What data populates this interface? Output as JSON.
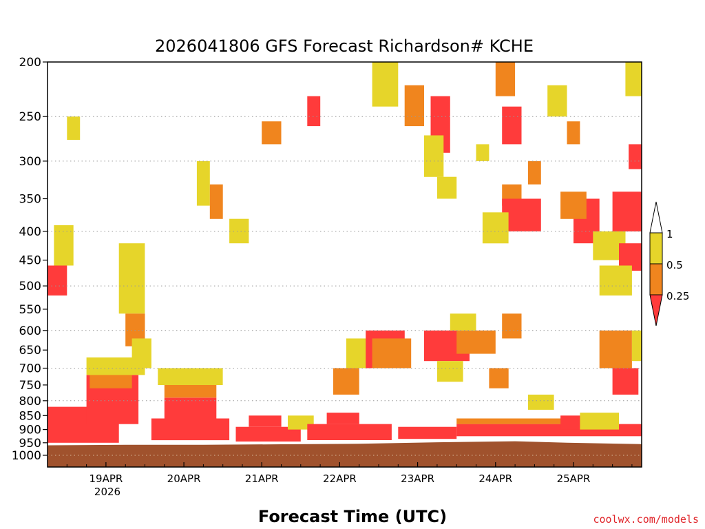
{
  "chart_data": {
    "type": "heatmap",
    "title": "2026041806 GFS Forecast Richardson# KCHE",
    "xlabel": "Forecast Time (UTC)",
    "credit": "coolwx.com/models",
    "y_axis": {
      "scale": "pressure (log)",
      "range": [
        1000,
        200
      ],
      "ticks": [
        "200",
        "250",
        "300",
        "350",
        "400",
        "450",
        "500",
        "550",
        "600",
        "650",
        "700",
        "750",
        "800",
        "850",
        "900",
        "950",
        "1000"
      ],
      "gridlines_dotted": [
        1000,
        800,
        700,
        600,
        500,
        400,
        300,
        250
      ]
    },
    "x_axis": {
      "range_hours": [
        0,
        183
      ],
      "start": "2026-04-18 06Z",
      "ticks": [
        {
          "label": "19APR",
          "hour": 18
        },
        {
          "label": "20APR",
          "hour": 42
        },
        {
          "label": "21APR",
          "hour": 66
        },
        {
          "label": "22APR",
          "hour": 90
        },
        {
          "label": "23APR",
          "hour": 114
        },
        {
          "label": "24APR",
          "hour": 138
        },
        {
          "label": "25APR",
          "hour": 162
        }
      ],
      "year_label": "2026"
    },
    "legend": {
      "placement": "right",
      "colors": {
        "above": "#ffffff",
        "low": "#ff3b3b",
        "mid": "#f0851e",
        "high": "#e6d52a"
      },
      "labels": [
        "1",
        "0.5",
        "0.25"
      ]
    },
    "ground_color": "#a0522d",
    "ground_top_pressure": [
      {
        "hour": 0,
        "p": 960
      },
      {
        "hour": 24,
        "p": 958
      },
      {
        "hour": 48,
        "p": 958
      },
      {
        "hour": 72,
        "p": 956
      },
      {
        "hour": 96,
        "p": 954
      },
      {
        "hour": 120,
        "p": 948
      },
      {
        "hour": 144,
        "p": 944
      },
      {
        "hour": 160,
        "p": 950
      },
      {
        "hour": 183,
        "p": 955
      }
    ],
    "categories": {
      "low": "Ri < 0.25",
      "mid": "0.25 – 0.5",
      "high": "0.5 – 1"
    },
    "regions": [
      {
        "cat": "low",
        "h": [
          0,
          22
        ],
        "p": [
          820,
          950
        ]
      },
      {
        "cat": "low",
        "h": [
          12,
          28
        ],
        "p": [
          720,
          880
        ]
      },
      {
        "cat": "mid",
        "h": [
          13,
          26
        ],
        "p": [
          690,
          760
        ]
      },
      {
        "cat": "high",
        "h": [
          12,
          30
        ],
        "p": [
          670,
          720
        ]
      },
      {
        "cat": "low",
        "h": [
          0,
          6
        ],
        "p": [
          460,
          520
        ]
      },
      {
        "cat": "high",
        "h": [
          2,
          8
        ],
        "p": [
          390,
          460
        ]
      },
      {
        "cat": "high",
        "h": [
          22,
          30
        ],
        "p": [
          420,
          560
        ]
      },
      {
        "cat": "mid",
        "h": [
          24,
          30
        ],
        "p": [
          560,
          640
        ]
      },
      {
        "cat": "high",
        "h": [
          26,
          32
        ],
        "p": [
          620,
          700
        ]
      },
      {
        "cat": "low",
        "h": [
          32,
          56
        ],
        "p": [
          860,
          940
        ]
      },
      {
        "cat": "low",
        "h": [
          36,
          52
        ],
        "p": [
          790,
          860
        ]
      },
      {
        "cat": "mid",
        "h": [
          36,
          52
        ],
        "p": [
          750,
          790
        ]
      },
      {
        "cat": "high",
        "h": [
          34,
          54
        ],
        "p": [
          700,
          750
        ]
      },
      {
        "cat": "low",
        "h": [
          58,
          78
        ],
        "p": [
          890,
          945
        ]
      },
      {
        "cat": "low",
        "h": [
          62,
          72
        ],
        "p": [
          850,
          890
        ]
      },
      {
        "cat": "high",
        "h": [
          74,
          82
        ],
        "p": [
          850,
          900
        ]
      },
      {
        "cat": "low",
        "h": [
          80,
          106
        ],
        "p": [
          880,
          940
        ]
      },
      {
        "cat": "low",
        "h": [
          86,
          96
        ],
        "p": [
          840,
          880
        ]
      },
      {
        "cat": "mid",
        "h": [
          88,
          96
        ],
        "p": [
          700,
          780
        ]
      },
      {
        "cat": "high",
        "h": [
          92,
          102
        ],
        "p": [
          620,
          700
        ]
      },
      {
        "cat": "low",
        "h": [
          98,
          110
        ],
        "p": [
          600,
          700
        ]
      },
      {
        "cat": "mid",
        "h": [
          100,
          112
        ],
        "p": [
          620,
          700
        ]
      },
      {
        "cat": "low",
        "h": [
          108,
          126
        ],
        "p": [
          890,
          935
        ]
      },
      {
        "cat": "low",
        "h": [
          116,
          130
        ],
        "p": [
          600,
          680
        ]
      },
      {
        "cat": "high",
        "h": [
          120,
          128
        ],
        "p": [
          680,
          740
        ]
      },
      {
        "cat": "mid",
        "h": [
          126,
          138
        ],
        "p": [
          600,
          660
        ]
      },
      {
        "cat": "high",
        "h": [
          124,
          132
        ],
        "p": [
          560,
          600
        ]
      },
      {
        "cat": "low",
        "h": [
          126,
          183
        ],
        "p": [
          880,
          925
        ]
      },
      {
        "cat": "mid",
        "h": [
          126,
          160
        ],
        "p": [
          860,
          880
        ]
      },
      {
        "cat": "mid",
        "h": [
          136,
          142
        ],
        "p": [
          700,
          760
        ]
      },
      {
        "cat": "mid",
        "h": [
          140,
          146
        ],
        "p": [
          560,
          620
        ]
      },
      {
        "cat": "high",
        "h": [
          148,
          156
        ],
        "p": [
          780,
          830
        ]
      },
      {
        "cat": "low",
        "h": [
          158,
          170
        ],
        "p": [
          850,
          900
        ]
      },
      {
        "cat": "high",
        "h": [
          164,
          176
        ],
        "p": [
          840,
          900
        ]
      },
      {
        "cat": "mid",
        "h": [
          170,
          180
        ],
        "p": [
          600,
          700
        ]
      },
      {
        "cat": "low",
        "h": [
          174,
          182
        ],
        "p": [
          700,
          780
        ]
      },
      {
        "cat": "high",
        "h": [
          180,
          183
        ],
        "p": [
          600,
          680
        ]
      },
      {
        "cat": "low",
        "h": [
          162,
          170
        ],
        "p": [
          350,
          420
        ]
      },
      {
        "cat": "mid",
        "h": [
          158,
          166
        ],
        "p": [
          340,
          380
        ]
      },
      {
        "cat": "low",
        "h": [
          174,
          183
        ],
        "p": [
          340,
          400
        ]
      },
      {
        "cat": "high",
        "h": [
          168,
          178
        ],
        "p": [
          400,
          450
        ]
      },
      {
        "cat": "low",
        "h": [
          176,
          183
        ],
        "p": [
          420,
          470
        ]
      },
      {
        "cat": "high",
        "h": [
          170,
          180
        ],
        "p": [
          460,
          520
        ]
      },
      {
        "cat": "mid",
        "h": [
          140,
          146
        ],
        "p": [
          330,
          360
        ]
      },
      {
        "cat": "low",
        "h": [
          140,
          152
        ],
        "p": [
          350,
          400
        ]
      },
      {
        "cat": "high",
        "h": [
          134,
          142
        ],
        "p": [
          370,
          420
        ]
      },
      {
        "cat": "low",
        "h": [
          118,
          124
        ],
        "p": [
          230,
          290
        ]
      },
      {
        "cat": "high",
        "h": [
          116,
          122
        ],
        "p": [
          270,
          320
        ]
      },
      {
        "cat": "low",
        "h": [
          140,
          146
        ],
        "p": [
          240,
          280
        ]
      },
      {
        "cat": "mid",
        "h": [
          138,
          144
        ],
        "p": [
          200,
          230
        ]
      },
      {
        "cat": "high",
        "h": [
          120,
          126
        ],
        "p": [
          320,
          350
        ]
      },
      {
        "cat": "mid",
        "h": [
          110,
          116
        ],
        "p": [
          220,
          260
        ]
      },
      {
        "cat": "high",
        "h": [
          100,
          108
        ],
        "p": [
          200,
          240
        ]
      },
      {
        "cat": "mid",
        "h": [
          66,
          72
        ],
        "p": [
          255,
          280
        ]
      },
      {
        "cat": "low",
        "h": [
          80,
          84
        ],
        "p": [
          230,
          260
        ]
      },
      {
        "cat": "high",
        "h": [
          46,
          50
        ],
        "p": [
          300,
          360
        ]
      },
      {
        "cat": "mid",
        "h": [
          50,
          54
        ],
        "p": [
          330,
          380
        ]
      },
      {
        "cat": "high",
        "h": [
          56,
          62
        ],
        "p": [
          380,
          420
        ]
      },
      {
        "cat": "high",
        "h": [
          6,
          10
        ],
        "p": [
          250,
          275
        ]
      },
      {
        "cat": "high",
        "h": [
          154,
          160
        ],
        "p": [
          220,
          250
        ]
      },
      {
        "cat": "mid",
        "h": [
          160,
          164
        ],
        "p": [
          255,
          280
        ]
      },
      {
        "cat": "high",
        "h": [
          178,
          183
        ],
        "p": [
          200,
          230
        ]
      },
      {
        "cat": "low",
        "h": [
          179,
          183
        ],
        "p": [
          280,
          310
        ]
      },
      {
        "cat": "mid",
        "h": [
          148,
          152
        ],
        "p": [
          300,
          330
        ]
      },
      {
        "cat": "high",
        "h": [
          132,
          136
        ],
        "p": [
          280,
          300
        ]
      }
    ]
  }
}
